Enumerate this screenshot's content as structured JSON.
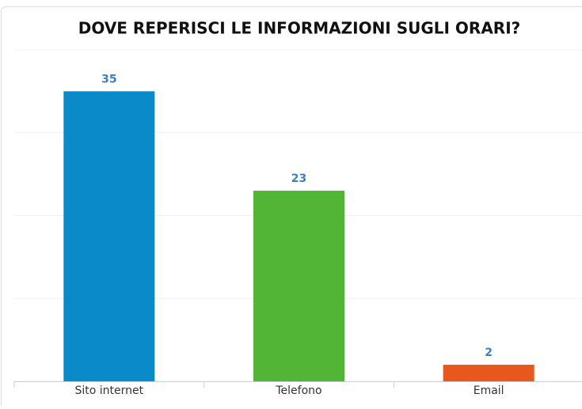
{
  "chart_data": {
    "type": "bar",
    "title": "DOVE REPERISCI LE INFORMAZIONI SUGLI ORARI?",
    "categories": [
      "Sito internet",
      "Telefono",
      "Email"
    ],
    "values": [
      35,
      23,
      2
    ],
    "colors": [
      "#0a8ac8",
      "#52b535",
      "#e8571e"
    ],
    "ylim": [
      0,
      40
    ],
    "yticks": [
      0,
      10,
      20,
      30,
      40
    ],
    "grid": true
  }
}
